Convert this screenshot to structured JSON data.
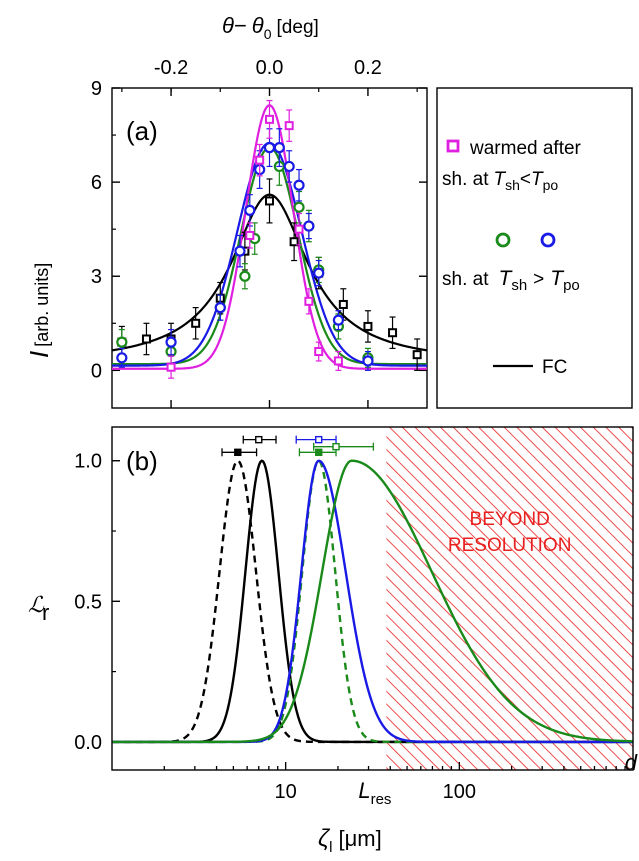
{
  "chart_data": [
    {
      "id": "a",
      "type": "scatter",
      "panel_label": "(a)",
      "xlabel_top": "θ− θ0 [deg]",
      "xlabel_top_parts": {
        "theta": "θ",
        "minus": "−",
        "sub_theta": "θ",
        "sub": "0",
        "unit": "[deg]"
      },
      "ylabel": "I [arb. units]",
      "ylabel_parts": {
        "sym": "I",
        "unit": "[arb. units]"
      },
      "xlim": [
        -0.32,
        0.32
      ],
      "ylim": [
        -1.2,
        9
      ],
      "xticks": [
        -0.2,
        0.0,
        0.2
      ],
      "xtick_labels": [
        "-0.2",
        "0.0",
        "0.2"
      ],
      "yticks": [
        0,
        3,
        6,
        9
      ],
      "ytick_labels": [
        "0",
        "3",
        "6",
        "9"
      ],
      "series": [
        {
          "name": "warmed after sh. at Tsh<Tpo",
          "color": "#e020e0",
          "marker": "square",
          "x": [
            -0.2,
            -0.04,
            -0.02,
            0.0,
            0.04,
            0.06,
            0.08,
            0.1,
            0.14
          ],
          "y": [
            0.1,
            4.3,
            6.7,
            8.0,
            7.8,
            4.5,
            2.2,
            0.6,
            0.3
          ],
          "err": [
            0.35,
            0.4,
            0.5,
            0.6,
            0.5,
            0.5,
            0.4,
            0.3,
            0.3
          ],
          "fit": {
            "amp": 8.4,
            "sigma": 0.048,
            "base": 0.05
          }
        },
        {
          "name": "sh. at Tsh > Tpo",
          "color": "#1a8a1a",
          "marker": "circle",
          "x": [
            -0.3,
            -0.2,
            -0.1,
            -0.05,
            -0.03,
            0.02,
            0.06,
            0.08,
            0.1,
            0.14,
            0.2
          ],
          "y": [
            0.9,
            0.6,
            2.0,
            3.0,
            4.2,
            6.5,
            5.2,
            4.6,
            3.2,
            1.4,
            0.4
          ],
          "err": [
            0.4,
            0.4,
            0.4,
            0.4,
            0.5,
            0.6,
            0.5,
            0.5,
            0.4,
            0.4,
            0.3
          ],
          "fit": {
            "amp": 6.9,
            "sigma": 0.058,
            "base": 0.2
          }
        },
        {
          "name": "sh. at Tsh > Tpo (blue)",
          "color": "#1a1ae6",
          "marker": "circle",
          "x": [
            -0.3,
            -0.2,
            -0.1,
            -0.06,
            -0.04,
            -0.02,
            0.0,
            0.02,
            0.04,
            0.06,
            0.08,
            0.1,
            0.14,
            0.2
          ],
          "y": [
            0.4,
            0.9,
            2.0,
            3.8,
            5.1,
            6.4,
            7.1,
            7.1,
            6.5,
            5.9,
            4.6,
            3.1,
            1.6,
            0.3
          ],
          "err": [
            0.3,
            0.4,
            0.4,
            0.5,
            0.5,
            0.6,
            0.6,
            0.6,
            0.5,
            0.5,
            0.4,
            0.4,
            0.3,
            0.3
          ],
          "fit": {
            "amp": 7.1,
            "sigma": 0.065,
            "base": 0.15
          }
        },
        {
          "name": "FC",
          "color": "#000000",
          "marker": "square",
          "x": [
            -0.3,
            -0.25,
            -0.2,
            -0.15,
            -0.1,
            -0.05,
            0.0,
            0.05,
            0.1,
            0.15,
            0.2,
            0.25,
            0.3
          ],
          "y": [
            0.9,
            1.0,
            1.0,
            1.5,
            2.3,
            3.8,
            5.4,
            4.1,
            3.1,
            2.1,
            1.4,
            1.2,
            0.5
          ],
          "err": [
            0.5,
            0.5,
            0.5,
            0.5,
            0.5,
            0.6,
            0.7,
            0.6,
            0.5,
            0.5,
            0.5,
            0.5,
            0.5
          ],
          "fit": {
            "amp": 5.4,
            "gamma": 0.095,
            "base": 0.2,
            "shape": "lorentzian"
          }
        }
      ]
    },
    {
      "id": "b",
      "type": "line",
      "panel_label": "(b)",
      "xlabel": "ζl [μm]",
      "xlabel_parts": {
        "sym": "ζ",
        "sub": "l",
        "unit": "[μm]"
      },
      "ylabel": "ℒr",
      "ylabel_parts": {
        "sym": "ℒ",
        "sub": "r"
      },
      "xscale": "log",
      "xlim": [
        1.0,
        1000
      ],
      "ylim": [
        -0.1,
        1.12
      ],
      "xticks": [
        10,
        100
      ],
      "xtick_labels": [
        "10",
        "100"
      ],
      "extra_xtick_labels": {
        "L_res": {
          "x": 38,
          "sym": "L",
          "sub": "res"
        },
        "d": {
          "x": 1000,
          "label": "d"
        }
      },
      "yticks": [
        0.0,
        0.5,
        1.0
      ],
      "ytick_labels": [
        "0.0",
        "0.5",
        "1.0"
      ],
      "region": {
        "x_from": 38,
        "x_to": 1000,
        "label_line1": "BEYOND",
        "label_line2": "RESOLUTION",
        "color": "#e8201f"
      },
      "series": [
        {
          "name": "FC dashed",
          "color": "#000000",
          "dash": true,
          "peak": 5.3,
          "log_sigma": 0.105
        },
        {
          "name": "FC",
          "color": "#000000",
          "dash": false,
          "peak": 7.3,
          "log_sigma": 0.095
        },
        {
          "name": "green dashed",
          "color": "#1a8a1a",
          "dash": true,
          "peak": 15.5,
          "log_sigma": 0.095
        },
        {
          "name": "blue",
          "color": "#1a1ae6",
          "dash": false,
          "peak": 15.5,
          "log_sigma_left": 0.1,
          "log_sigma_right": 0.155
        },
        {
          "name": "green",
          "color": "#1a8a1a",
          "dash": false,
          "peak": 24.0,
          "log_sigma_left": 0.17,
          "log_sigma_right": 0.46
        }
      ],
      "peak_markers": [
        {
          "color": "#000000",
          "x": 5.3,
          "xerr": [
            4.3,
            6.8
          ],
          "y": 1.03,
          "filled": true
        },
        {
          "color": "#000000",
          "x": 7.0,
          "xerr": [
            5.7,
            8.8
          ],
          "y": 1.075,
          "filled": false
        },
        {
          "color": "#1a1ae6",
          "x": 15.5,
          "xerr": [
            11.5,
            19.5
          ],
          "y": 1.075,
          "filled": false
        },
        {
          "color": "#1a8a1a",
          "x": 15.5,
          "xerr": [
            12.0,
            19.5
          ],
          "y": 1.03,
          "filled": true
        },
        {
          "color": "#1a8a1a",
          "x": 19.5,
          "xerr": [
            14.5,
            32.0
          ],
          "y": 1.05,
          "filled": false
        }
      ]
    }
  ],
  "legend": {
    "item1_line1": "warmed after",
    "item1_line2_prefix": "sh.  at",
    "item1_T": "T",
    "item1_sub1": "sh",
    "item1_lt": "<",
    "item1_T2": "T",
    "item1_sub2": "po",
    "item2_prefix": "sh. at",
    "item2_T": "T",
    "item2_sub1": "sh",
    "item2_gt": ">",
    "item2_T2": "T",
    "item2_sub2": "po",
    "item3_label": "FC",
    "colors": {
      "magenta": "#e020e0",
      "green": "#1a8a1a",
      "blue": "#1a1ae6",
      "black": "#000000"
    }
  }
}
